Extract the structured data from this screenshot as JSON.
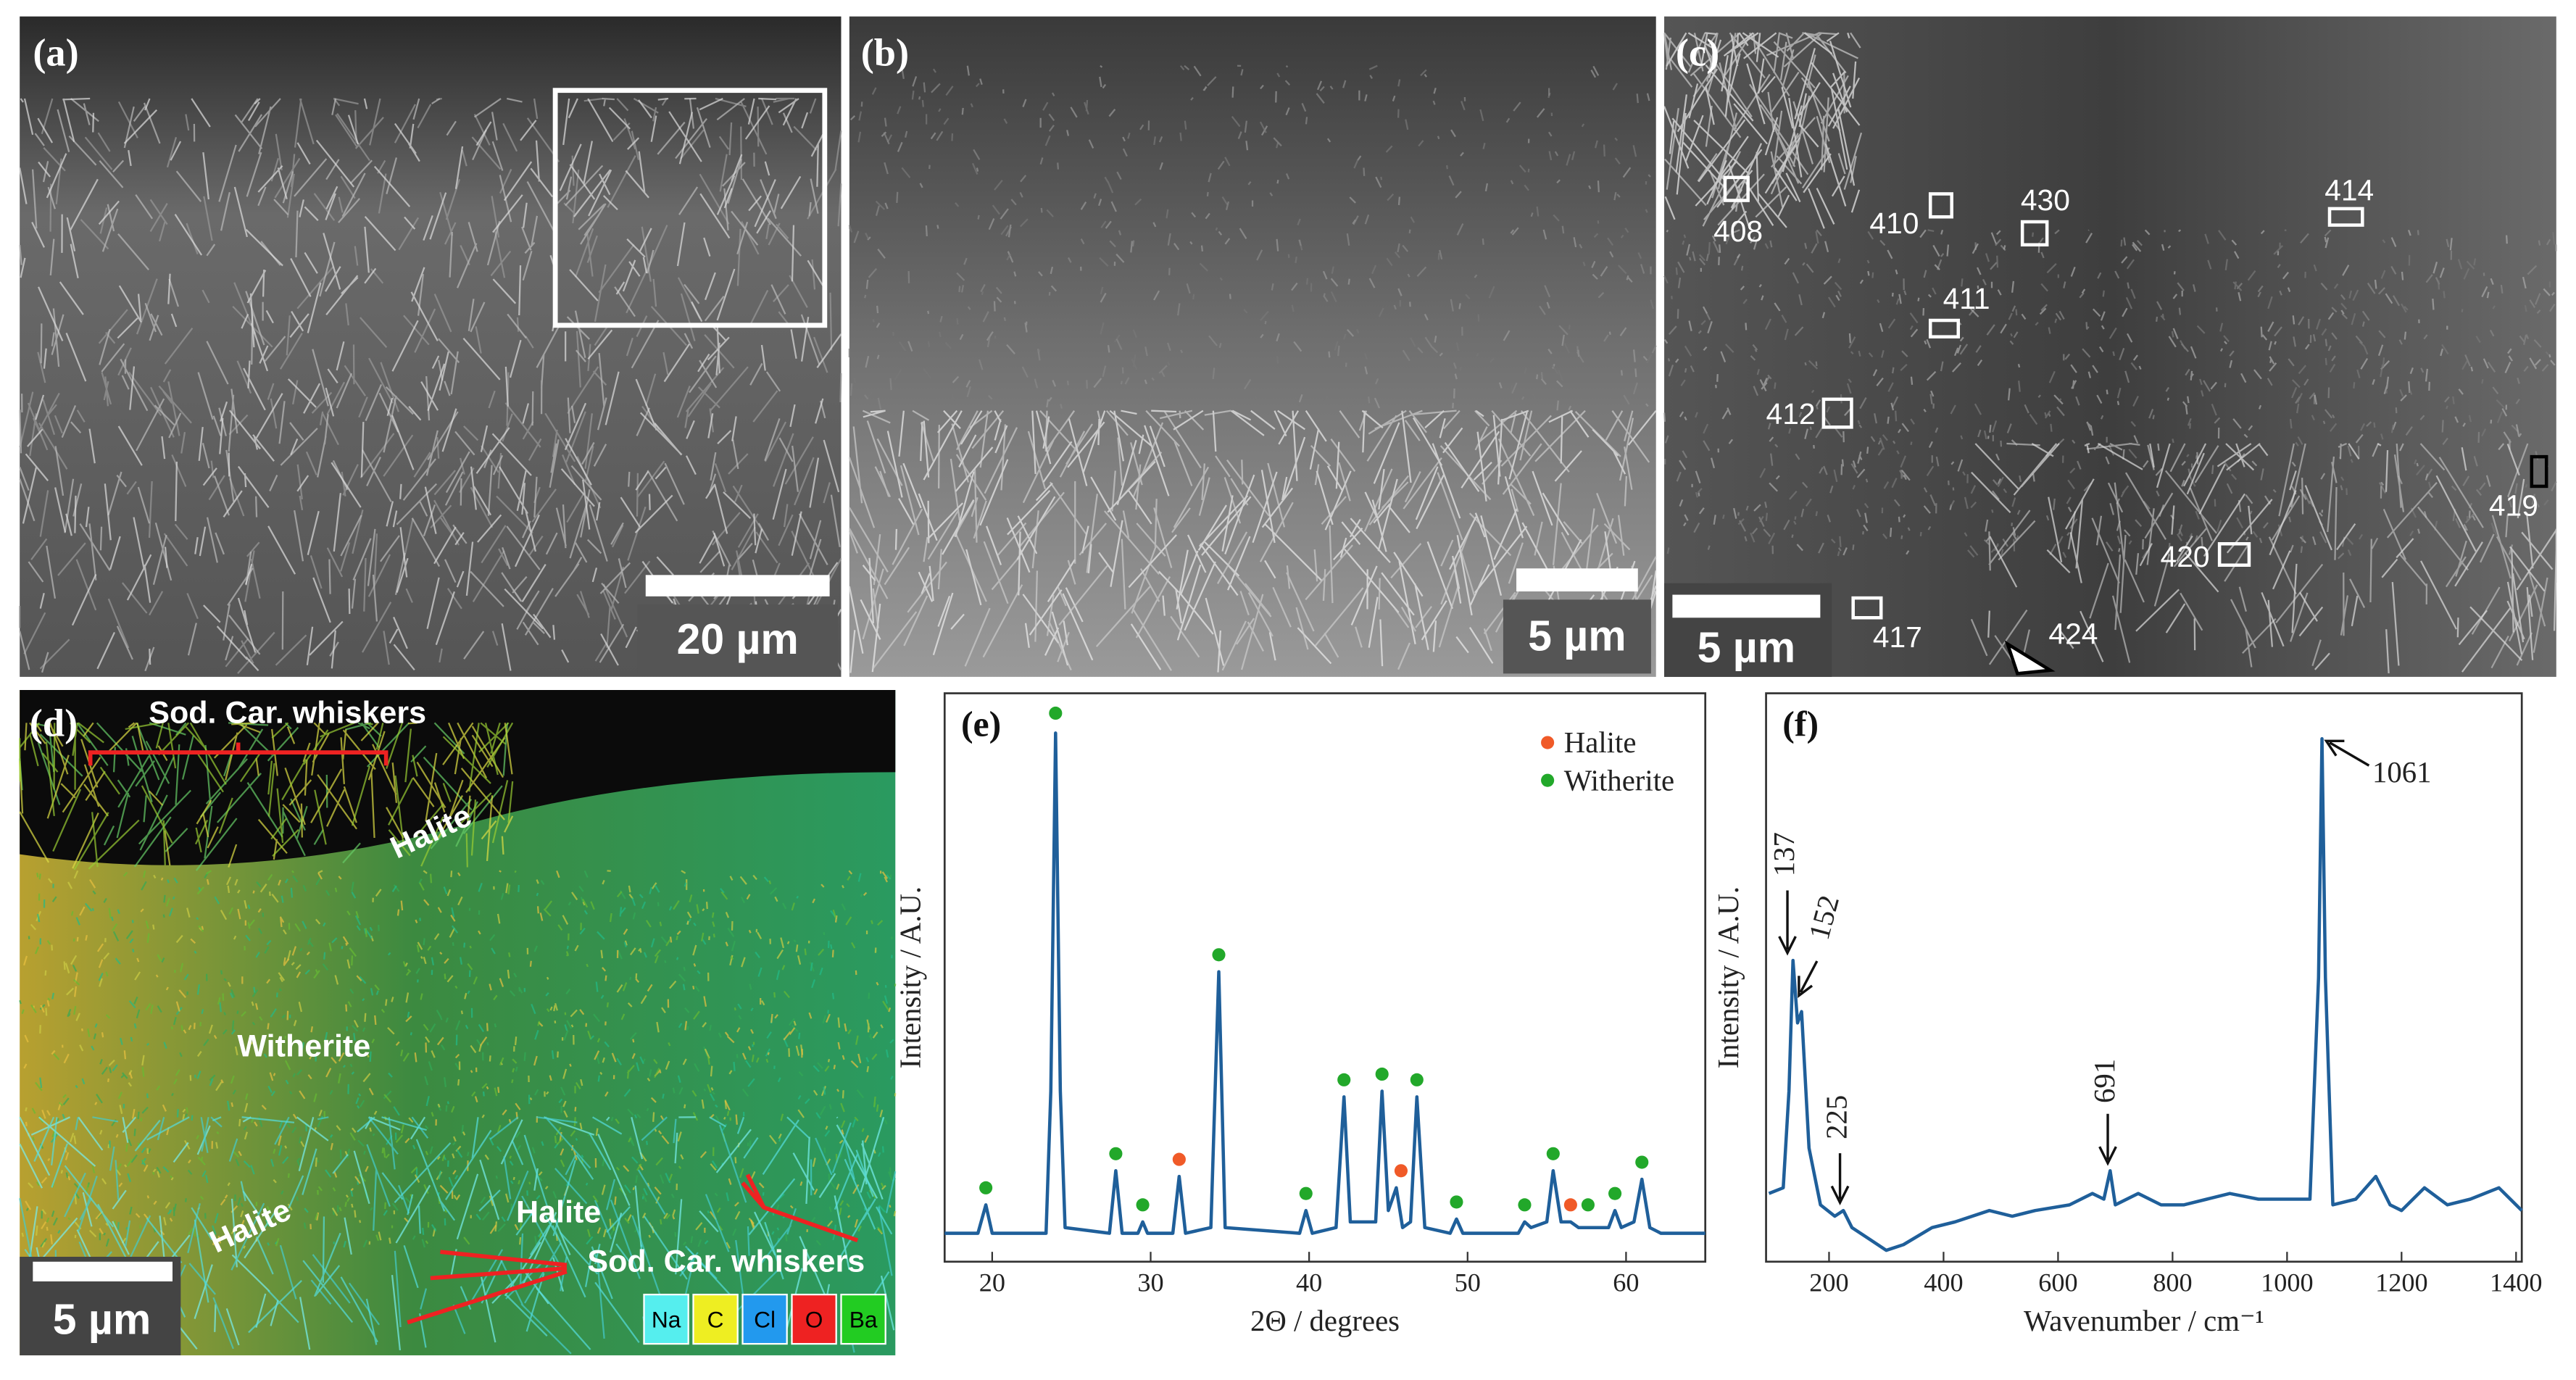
{
  "panels": {
    "a": {
      "label": "(a)",
      "scale_bar": "20 µm"
    },
    "b": {
      "label": "(b)",
      "scale_bar": "5 µm"
    },
    "c": {
      "label": "(c)",
      "scale_bar": "5 µm",
      "regions": [
        "408",
        "410",
        "430",
        "414",
        "411",
        "412",
        "419",
        "420",
        "417",
        "424"
      ]
    },
    "d": {
      "label": "(d)",
      "scale_bar": "5 µm",
      "annotations": [
        "Sod. Car. whiskers",
        "Halite",
        "Witherite",
        "Halite",
        "Halite",
        "Sod. Car. whiskers"
      ],
      "elements": [
        {
          "name": "Na",
          "color": "#55eeee"
        },
        {
          "name": "C",
          "color": "#eeee22"
        },
        {
          "name": "Cl",
          "color": "#2299ee"
        },
        {
          "name": "O",
          "color": "#ee2222"
        },
        {
          "name": "Ba",
          "color": "#22cc22"
        }
      ]
    }
  },
  "chart_data": [
    {
      "type": "line",
      "label": "(e)",
      "xlabel": "2Θ / degrees",
      "ylabel": "Intensity / A.U.",
      "xlim": [
        17,
        65
      ],
      "xticks": [
        20,
        30,
        40,
        50,
        60
      ],
      "ylim": [
        0,
        1
      ],
      "line": {
        "color": "#1f5f9a",
        "x": [
          17,
          19.1,
          19.6,
          20.0,
          23.4,
          23.7,
          24.0,
          24.3,
          24.6,
          27.4,
          27.8,
          28.2,
          29.2,
          29.5,
          29.8,
          31.4,
          31.8,
          32.2,
          33.8,
          34.3,
          34.7,
          39.4,
          39.8,
          40.2,
          41.7,
          42.2,
          42.6,
          44.2,
          44.6,
          45.0,
          45.5,
          45.9,
          46.4,
          46.8,
          47.3,
          48.9,
          49.3,
          49.7,
          53.2,
          53.6,
          54.0,
          55.0,
          55.4,
          55.9,
          56.5,
          57.0,
          58.9,
          59.3,
          59.7,
          60.5,
          61.0,
          61.5,
          62.2,
          65
        ],
        "values": [
          0.05,
          0.05,
          0.1,
          0.05,
          0.05,
          0.3,
          0.93,
          0.3,
          0.06,
          0.05,
          0.16,
          0.05,
          0.05,
          0.07,
          0.05,
          0.05,
          0.15,
          0.05,
          0.06,
          0.51,
          0.06,
          0.05,
          0.09,
          0.05,
          0.06,
          0.29,
          0.07,
          0.07,
          0.3,
          0.09,
          0.13,
          0.06,
          0.07,
          0.29,
          0.06,
          0.05,
          0.075,
          0.05,
          0.05,
          0.07,
          0.06,
          0.07,
          0.16,
          0.07,
          0.07,
          0.06,
          0.06,
          0.09,
          0.06,
          0.07,
          0.145,
          0.06,
          0.05,
          0.05
        ]
      },
      "markers": [
        {
          "name": "Halite",
          "color": "#f05a28",
          "x": [
            31.8,
            45.8,
            56.5
          ],
          "values": [
            0.18,
            0.16,
            0.1
          ]
        },
        {
          "name": "Witherite",
          "color": "#22a82a",
          "x": [
            19.6,
            24.0,
            27.8,
            29.5,
            34.3,
            39.8,
            42.2,
            44.6,
            46.8,
            49.3,
            53.6,
            55.4,
            57.6,
            59.3,
            61.0
          ],
          "values": [
            0.13,
            0.965,
            0.19,
            0.1,
            0.54,
            0.12,
            0.32,
            0.33,
            0.32,
            0.105,
            0.1,
            0.19,
            0.1,
            0.12,
            0.175
          ]
        }
      ]
    },
    {
      "type": "line",
      "label": "(f)",
      "xlabel": "Wavenumber / cm⁻¹",
      "ylabel": "Intensity / A.U.",
      "xlim": [
        90,
        1410
      ],
      "xticks": [
        200,
        400,
        600,
        800,
        1000,
        1200,
        1400
      ],
      "ylim": [
        0,
        1
      ],
      "line": {
        "color": "#1f5f9a",
        "x": [
          95,
          120,
          130,
          137,
          145,
          152,
          165,
          185,
          210,
          225,
          240,
          270,
          300,
          330,
          380,
          420,
          480,
          520,
          560,
          620,
          660,
          680,
          691,
          700,
          740,
          780,
          820,
          860,
          900,
          950,
          1000,
          1040,
          1055,
          1061,
          1067,
          1080,
          1120,
          1155,
          1180,
          1200,
          1240,
          1280,
          1320,
          1370,
          1400,
          1410
        ],
        "values": [
          0.12,
          0.13,
          0.3,
          0.53,
          0.42,
          0.44,
          0.2,
          0.1,
          0.08,
          0.09,
          0.06,
          0.04,
          0.02,
          0.03,
          0.06,
          0.07,
          0.09,
          0.08,
          0.09,
          0.1,
          0.12,
          0.11,
          0.16,
          0.1,
          0.12,
          0.1,
          0.1,
          0.11,
          0.12,
          0.11,
          0.11,
          0.11,
          0.5,
          0.92,
          0.5,
          0.1,
          0.11,
          0.15,
          0.1,
          0.09,
          0.13,
          0.1,
          0.11,
          0.13,
          0.1,
          0.09
        ]
      },
      "annotations": [
        "137",
        "152",
        "225",
        "691",
        "1061"
      ]
    }
  ]
}
